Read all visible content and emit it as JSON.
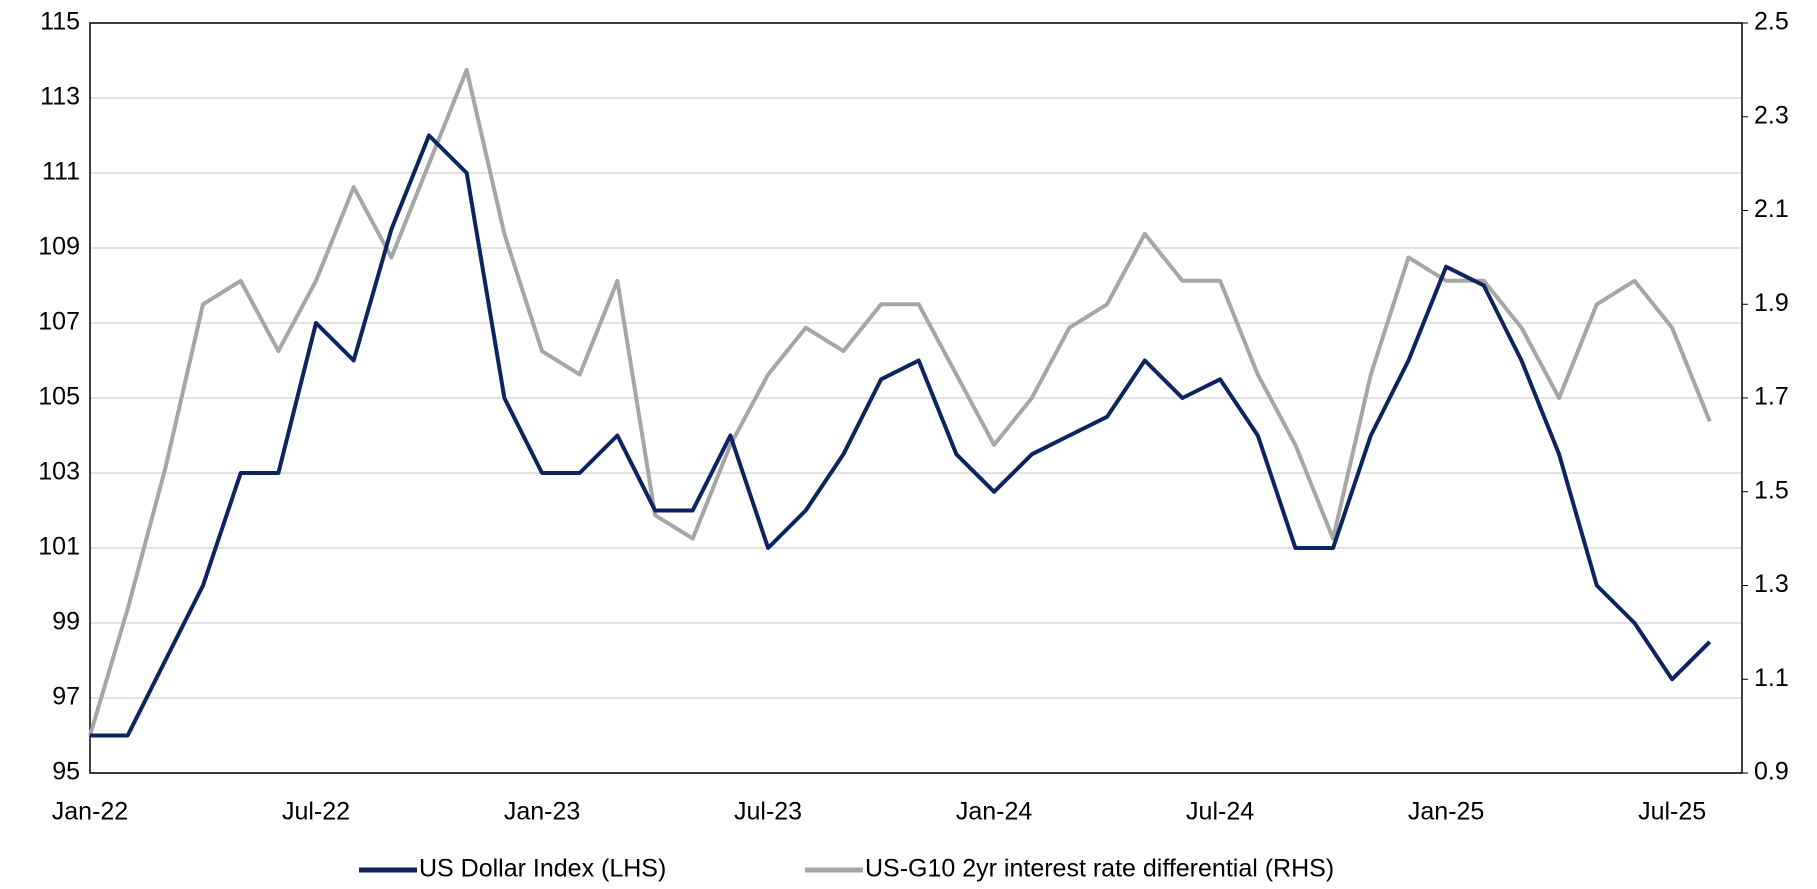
{
  "chart_data": {
    "type": "line",
    "categories": [
      "Jan-22",
      null,
      null,
      null,
      null,
      null,
      "Jul-22",
      null,
      null,
      null,
      null,
      null,
      "Jan-23",
      null,
      null,
      null,
      null,
      null,
      "Jul-23",
      null,
      null,
      null,
      null,
      null,
      "Jan-24",
      null,
      null,
      null,
      null,
      null,
      "Jul-24",
      null,
      null,
      null,
      null,
      null,
      "Jan-25",
      null,
      null,
      null,
      null,
      null,
      "Jul-25",
      null
    ],
    "series": [
      {
        "name": "US Dollar Index (LHS)",
        "color": "#0d2461",
        "values": [
          96,
          96,
          98,
          100,
          103,
          103,
          107,
          106,
          109.5,
          112,
          111,
          105,
          103,
          103,
          104,
          102,
          102,
          104,
          101,
          102,
          103.5,
          105.5,
          106,
          103.5,
          102.5,
          103.5,
          104,
          104.5,
          106,
          105,
          105.5,
          104,
          101,
          101,
          104,
          106,
          108.5,
          108,
          106,
          103.5,
          100,
          99,
          97.5,
          98.5
        ]
      },
      {
        "name": "US-G10 2yr interest rate differential (RHS)",
        "color": "#a6a6a6",
        "axis": "y2",
        "values": [
          0.98,
          1.25,
          1.55,
          1.9,
          1.95,
          1.8,
          1.95,
          2.15,
          2.0,
          2.2,
          2.4,
          2.05,
          1.8,
          1.75,
          1.95,
          1.45,
          1.4,
          1.6,
          1.75,
          1.85,
          1.8,
          1.9,
          1.9,
          1.75,
          1.6,
          1.7,
          1.85,
          1.9,
          2.05,
          1.95,
          1.95,
          1.75,
          1.6,
          1.4,
          1.75,
          2.0,
          1.95,
          1.95,
          1.85,
          1.7,
          1.9,
          1.95,
          1.85,
          1.65
        ]
      }
    ],
    "ylim": [
      95,
      115
    ],
    "yticks": [
      95,
      97,
      99,
      101,
      103,
      105,
      107,
      109,
      111,
      113,
      115
    ],
    "y2lim": [
      0.9,
      2.5
    ],
    "y2ticks": [
      0.9,
      1.1,
      1.3,
      1.5,
      1.7,
      1.9,
      2.1,
      2.3,
      2.5
    ],
    "grid": true,
    "legend": "bottom"
  }
}
